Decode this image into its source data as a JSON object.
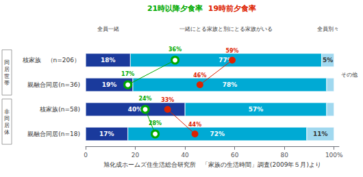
{
  "chart_data": {
    "type": "bar",
    "orientation": "horizontal",
    "stacked": true,
    "data_labels": true,
    "grid": false,
    "categories": [
      "核家族　（n=206）",
      "親融合同居(n=36)",
      "核家族(n=58)",
      "親融合同居(n=18)"
    ],
    "groups": [
      {
        "label": "同\n居\n世\n帯",
        "categories": [
          "核家族　（n=206）",
          "親融合同居(n=36)"
        ]
      },
      {
        "label": "非\n同\n居\n体",
        "categories": [
          "核家族(n=58)",
          "親融合同居(n=18)"
        ]
      }
    ],
    "series": [
      {
        "name": "全員一緒",
        "color": "#1a3a9c",
        "values": [
          18,
          19,
          40,
          17
        ],
        "value_labels": [
          "18%",
          "19%",
          "40%",
          "17%"
        ]
      },
      {
        "name": "一緒にとる家族と別にとる家族がいる",
        "color": "#00aad4",
        "values": [
          77,
          78,
          57,
          72
        ],
        "value_labels": [
          "77%",
          "78%",
          "57%",
          "72%"
        ]
      },
      {
        "name": "全員別々",
        "color": "#a0d8ef",
        "values": [
          5,
          3,
          3,
          11
        ],
        "value_labels": [
          "5%",
          null,
          null,
          "11%"
        ]
      },
      {
        "name": "21時以降夕食率",
        "type": "line",
        "marker": "hollow circle",
        "color": "#00aa00",
        "values": [
          36,
          17,
          24,
          28
        ],
        "value_labels": [
          "36%",
          "17%",
          "24%",
          "28%"
        ]
      },
      {
        "name": "19時前夕食率",
        "type": "line",
        "marker": "circle",
        "color": "#dd2200",
        "values": [
          59,
          46,
          33,
          44
        ],
        "value_labels": [
          "59%",
          "46%",
          "33%",
          "44%"
        ]
      }
    ],
    "annotations": [
      "その他"
    ],
    "xlabel": "旭化成ホームズ住生活総合研究所　「家族の生活時間」調査(2009年５月)より",
    "xlim": [
      0,
      102
    ],
    "xticks": [
      0,
      20,
      40,
      60,
      80,
      {
        "value": 100,
        "label": "100%"
      }
    ]
  }
}
